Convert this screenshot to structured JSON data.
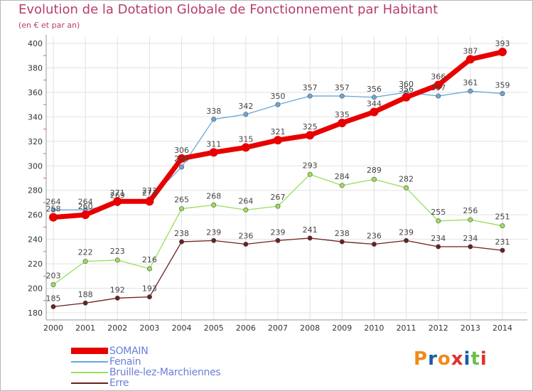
{
  "title": "Evolution de la Dotation Globale de Fonctionnement par Habitant",
  "subtitle": "(en € et par an)",
  "chart_data": {
    "type": "line",
    "x": [
      "2000",
      "2001",
      "2002",
      "2003",
      "2004",
      "2005",
      "2006",
      "2007",
      "2008",
      "2009",
      "2010",
      "2011",
      "2012",
      "2013",
      "2014"
    ],
    "ylim": [
      180,
      400
    ],
    "yticks": [
      180,
      200,
      220,
      240,
      260,
      280,
      300,
      320,
      340,
      360,
      380,
      400
    ],
    "grid": true,
    "xlabel": "",
    "ylabel": "",
    "series": [
      {
        "name": "SOMAIN",
        "color": "#e80000",
        "values": [
          258,
          260,
          271,
          271,
          306,
          311,
          315,
          321,
          325,
          335,
          344,
          356,
          366,
          387,
          393
        ]
      },
      {
        "name": "Fenain",
        "color": "#6aa6d8",
        "values": [
          264,
          264,
          269,
          273,
          299,
          338,
          342,
          350,
          357,
          357,
          356,
          360,
          357,
          361,
          359
        ]
      },
      {
        "name": "Bruille-lez-Marchiennes",
        "color": "#9bdd5a",
        "values": [
          203,
          222,
          223,
          216,
          265,
          268,
          264,
          267,
          293,
          284,
          289,
          282,
          255,
          256,
          251
        ]
      },
      {
        "name": "Erre",
        "color": "#6b1f1f",
        "values": [
          185,
          188,
          192,
          193,
          238,
          239,
          236,
          239,
          241,
          238,
          236,
          239,
          234,
          234,
          231
        ]
      }
    ]
  },
  "legend": [
    {
      "name": "SOMAIN",
      "color": "#e80000"
    },
    {
      "name": "Fenain",
      "color": "#6aa6d8"
    },
    {
      "name": "Bruille-lez-Marchiennes",
      "color": "#9bdd5a"
    },
    {
      "name": "Erre",
      "color": "#6b1f1f"
    }
  ],
  "legend_text_color": "#6a7fd8",
  "logo": {
    "text": "Proxiti",
    "letters": [
      "P",
      "r",
      "o",
      "x",
      "i",
      "t",
      "i"
    ],
    "colors": [
      "#f08a1c",
      "#1a5aa8",
      "#f08a1c",
      "#e03030",
      "#1a5aa8",
      "#6cc04a",
      "#e03030"
    ]
  }
}
